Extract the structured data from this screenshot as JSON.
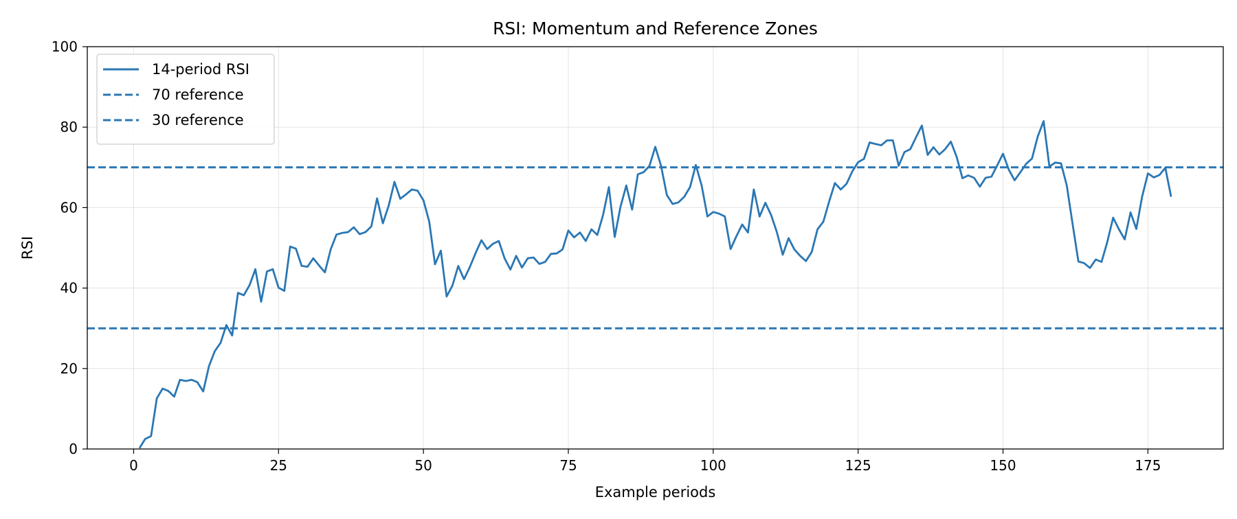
{
  "chart_data": {
    "type": "line",
    "title": "RSI: Momentum and Reference Zones",
    "xlabel": "Example periods",
    "ylabel": "RSI",
    "xlim": [
      -8,
      188
    ],
    "ylim": [
      0,
      100
    ],
    "xticks": [
      0,
      25,
      50,
      75,
      100,
      125,
      150,
      175
    ],
    "yticks": [
      0,
      20,
      40,
      60,
      80,
      100
    ],
    "grid": true,
    "legend_position": "top-left",
    "line_color": "#2a77b4",
    "series": [
      {
        "name": "14-period RSI",
        "style": "solid",
        "x": [
          1,
          2,
          3,
          4,
          5,
          6,
          7,
          8,
          9,
          10,
          11,
          12,
          13,
          14,
          15,
          16,
          17,
          18,
          19,
          20,
          21,
          22,
          23,
          24,
          25,
          26,
          27,
          28,
          29,
          30,
          31,
          32,
          33,
          34,
          35,
          36,
          37,
          38,
          39,
          40,
          41,
          42,
          43,
          44,
          45,
          46,
          47,
          48,
          49,
          50,
          51,
          52,
          53,
          54,
          55,
          56,
          57,
          58,
          59,
          60,
          61,
          62,
          63,
          64,
          65,
          66,
          67,
          68,
          69,
          70,
          71,
          72,
          73,
          74,
          75,
          76,
          77,
          78,
          79,
          80,
          81,
          82,
          83,
          84,
          85,
          86,
          87,
          88,
          89,
          90,
          91,
          92,
          93,
          94,
          95,
          96,
          97,
          98,
          99,
          100,
          101,
          102,
          103,
          104,
          105,
          106,
          107,
          108,
          109,
          110,
          111,
          112,
          113,
          114,
          115,
          116,
          117,
          118,
          119,
          120,
          121,
          122,
          123,
          124,
          125,
          126,
          127,
          128,
          129,
          130,
          131,
          132,
          133,
          134,
          135,
          136,
          137,
          138,
          139,
          140,
          141,
          142,
          143,
          144,
          145,
          146,
          147,
          148,
          149,
          150,
          151,
          152,
          153,
          154,
          155,
          156,
          157,
          158,
          159,
          160,
          161,
          162,
          163,
          164,
          165,
          166,
          167,
          168,
          169,
          170,
          171,
          172,
          173,
          174,
          175,
          176,
          177,
          178,
          179
        ],
        "values": [
          0.2,
          2.5,
          3.2,
          12.6,
          15.0,
          14.4,
          13.0,
          17.2,
          16.9,
          17.2,
          16.6,
          14.3,
          20.6,
          24.3,
          26.4,
          30.8,
          28.2,
          38.8,
          38.2,
          40.7,
          44.7,
          36.6,
          44.1,
          44.7,
          40.1,
          39.3,
          50.3,
          49.8,
          45.5,
          45.3,
          47.4,
          45.6,
          43.9,
          49.6,
          53.3,
          53.7,
          53.9,
          55.1,
          53.4,
          53.9,
          55.3,
          62.3,
          56.1,
          60.5,
          66.4,
          62.2,
          63.3,
          64.5,
          64.2,
          61.8,
          56.5,
          45.9,
          49.3,
          37.9,
          40.6,
          45.5,
          42.2,
          45.2,
          48.7,
          51.9,
          49.7,
          51.0,
          51.7,
          47.4,
          44.6,
          48.0,
          45.1,
          47.4,
          47.6,
          46.0,
          46.5,
          48.5,
          48.6,
          49.6,
          54.3,
          52.6,
          53.8,
          51.7,
          54.6,
          53.2,
          58.2,
          65.1,
          52.7,
          60.2,
          65.5,
          59.5,
          68.3,
          68.8,
          70.4,
          75.1,
          70.4,
          63.1,
          60.9,
          61.3,
          62.7,
          65.1,
          70.6,
          65.5,
          57.8,
          58.9,
          58.5,
          57.8,
          49.7,
          52.9,
          55.8,
          53.8,
          64.5,
          57.8,
          61.2,
          58.1,
          53.8,
          48.3,
          52.4,
          49.6,
          48.0,
          46.7,
          49.0,
          54.6,
          56.5,
          61.5,
          66.1,
          64.5,
          65.9,
          69.0,
          71.3,
          72.1,
          76.2,
          75.8,
          75.5,
          76.7,
          76.7,
          70.4,
          73.8,
          74.5,
          77.5,
          80.4,
          73.1,
          75.0,
          73.2,
          74.5,
          76.4,
          72.6,
          67.3,
          68.0,
          67.4,
          65.2,
          67.4,
          67.7,
          70.5,
          73.4,
          69.4,
          66.8,
          68.8,
          70.9,
          72.2,
          77.7,
          81.5,
          70.2,
          71.2,
          71.0,
          65.5,
          56.0,
          46.6,
          46.2,
          45.0,
          47.1,
          46.5,
          51.5,
          57.5,
          54.6,
          52.1,
          58.8,
          54.7,
          62.7,
          68.5,
          67.5,
          68.1,
          69.9,
          62.7
        ]
      },
      {
        "name": "70 reference",
        "style": "dashed",
        "y": 70
      },
      {
        "name": "30 reference",
        "style": "dashed",
        "y": 30
      }
    ]
  }
}
